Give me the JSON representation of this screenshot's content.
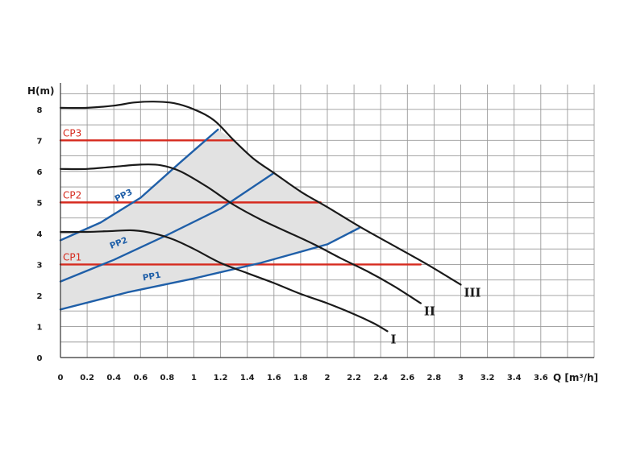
{
  "chart_data": {
    "type": "line",
    "title": "",
    "ylabel": "H(m)",
    "xlabel": "Q [m³/h]",
    "xlim": [
      0,
      4
    ],
    "ylim": [
      0,
      8.8
    ],
    "grid": true,
    "x_ticks": [
      "0",
      "0.2",
      "0.4",
      "0.6",
      "0.8",
      "1",
      "1.2",
      "1.4",
      "1.6",
      "1.8",
      "2",
      "2.2",
      "2.4",
      "2.6",
      "2.8",
      "3",
      "3.2",
      "3.4",
      "3.6"
    ],
    "y_ticks": [
      "0",
      "1",
      "2",
      "3",
      "4",
      "5",
      "6",
      "7",
      "8"
    ],
    "operating_area_color": "#e2e2e2",
    "series": [
      {
        "name": "I",
        "kind": "pump-curve",
        "color": "#1a1a1a",
        "points": [
          [
            0,
            4.05
          ],
          [
            0.2,
            4.05
          ],
          [
            0.4,
            4.08
          ],
          [
            0.55,
            4.1
          ],
          [
            0.7,
            4.0
          ],
          [
            0.85,
            3.8
          ],
          [
            1,
            3.5
          ],
          [
            1.2,
            3.05
          ],
          [
            1.4,
            2.72
          ],
          [
            1.6,
            2.4
          ],
          [
            1.8,
            2.05
          ],
          [
            2.0,
            1.75
          ],
          [
            2.2,
            1.4
          ],
          [
            2.35,
            1.1
          ],
          [
            2.45,
            0.85
          ]
        ]
      },
      {
        "name": "II",
        "kind": "pump-curve",
        "color": "#1a1a1a",
        "points": [
          [
            0,
            6.08
          ],
          [
            0.2,
            6.08
          ],
          [
            0.4,
            6.15
          ],
          [
            0.6,
            6.22
          ],
          [
            0.75,
            6.2
          ],
          [
            0.9,
            6.0
          ],
          [
            1.1,
            5.5
          ],
          [
            1.3,
            4.92
          ],
          [
            1.5,
            4.45
          ],
          [
            1.7,
            4.05
          ],
          [
            1.9,
            3.65
          ],
          [
            2.1,
            3.2
          ],
          [
            2.3,
            2.78
          ],
          [
            2.5,
            2.3
          ],
          [
            2.7,
            1.75
          ]
        ]
      },
      {
        "name": "III",
        "kind": "pump-curve",
        "color": "#1a1a1a",
        "points": [
          [
            0,
            8.05
          ],
          [
            0.2,
            8.05
          ],
          [
            0.4,
            8.12
          ],
          [
            0.55,
            8.22
          ],
          [
            0.7,
            8.25
          ],
          [
            0.85,
            8.2
          ],
          [
            1.0,
            8.0
          ],
          [
            1.15,
            7.65
          ],
          [
            1.3,
            7.0
          ],
          [
            1.45,
            6.4
          ],
          [
            1.6,
            5.95
          ],
          [
            1.8,
            5.35
          ],
          [
            2.0,
            4.85
          ],
          [
            2.25,
            4.2
          ],
          [
            2.5,
            3.6
          ],
          [
            2.75,
            3.0
          ],
          [
            3.0,
            2.35
          ]
        ]
      },
      {
        "name": "PP1",
        "kind": "proportional-pressure",
        "color": "#1f5fa8",
        "points": [
          [
            0,
            1.55
          ],
          [
            0.5,
            2.1
          ],
          [
            1.0,
            2.55
          ],
          [
            1.5,
            3.05
          ],
          [
            2.0,
            3.65
          ],
          [
            2.24,
            4.18
          ]
        ]
      },
      {
        "name": "PP2",
        "kind": "proportional-pressure",
        "color": "#1f5fa8",
        "points": [
          [
            0,
            2.45
          ],
          [
            0.4,
            3.15
          ],
          [
            0.8,
            3.95
          ],
          [
            1.2,
            4.8
          ],
          [
            1.6,
            5.95
          ]
        ]
      },
      {
        "name": "PP3",
        "kind": "proportional-pressure",
        "color": "#1f5fa8",
        "points": [
          [
            0,
            3.78
          ],
          [
            0.3,
            4.35
          ],
          [
            0.6,
            5.15
          ],
          [
            0.9,
            6.3
          ],
          [
            1.18,
            7.35
          ]
        ]
      },
      {
        "name": "CP1",
        "kind": "constant-pressure",
        "color": "#d62a1e",
        "points": [
          [
            0,
            3.0
          ],
          [
            2.7,
            3.0
          ]
        ]
      },
      {
        "name": "CP2",
        "kind": "constant-pressure",
        "color": "#d62a1e",
        "points": [
          [
            0,
            5.0
          ],
          [
            1.95,
            5.0
          ]
        ]
      },
      {
        "name": "CP3",
        "kind": "constant-pressure",
        "color": "#d62a1e",
        "points": [
          [
            0,
            7.0
          ],
          [
            1.3,
            7.0
          ]
        ]
      }
    ],
    "operating_area": [
      [
        0,
        1.55
      ],
      [
        0.5,
        2.1
      ],
      [
        1.0,
        2.55
      ],
      [
        1.5,
        3.05
      ],
      [
        2.0,
        3.65
      ],
      [
        2.24,
        4.18
      ],
      [
        2.0,
        4.85
      ],
      [
        1.8,
        5.35
      ],
      [
        1.6,
        5.95
      ],
      [
        1.45,
        6.4
      ],
      [
        1.3,
        7.0
      ],
      [
        1.18,
        7.35
      ],
      [
        0.9,
        6.3
      ],
      [
        0.6,
        5.15
      ],
      [
        0.3,
        4.35
      ],
      [
        0,
        3.78
      ]
    ]
  }
}
